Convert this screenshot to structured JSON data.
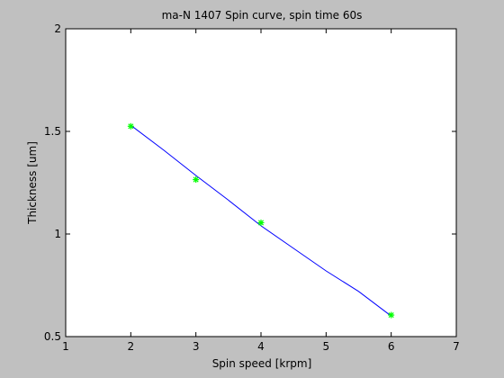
{
  "figure": {
    "background": "#c0c0c0",
    "axes_background": "#ffffff"
  },
  "chart_data": {
    "type": "scatter",
    "title": "ma-N 1407 Spin curve, spin time 60s",
    "xlabel": "Spin speed [krpm]",
    "ylabel": "Thickness [um]",
    "xlim": [
      1,
      7
    ],
    "ylim": [
      0.5,
      2
    ],
    "xticks": [
      1,
      2,
      3,
      4,
      5,
      6,
      7
    ],
    "yticks": [
      0.5,
      1,
      1.5,
      2
    ],
    "xtick_labels": [
      "1",
      "2",
      "3",
      "4",
      "5",
      "6",
      "7"
    ],
    "ytick_labels": [
      "0.5",
      "1",
      "1.5",
      "2"
    ],
    "grid": false,
    "legend": "none",
    "series": [
      {
        "style": "green asterisk markers",
        "color": "#00ff00",
        "x": [
          2,
          3,
          4,
          6
        ],
        "y": [
          1.525,
          1.265,
          1.055,
          0.605
        ]
      },
      {
        "style": "blue fitted line",
        "color": "#0000ff",
        "x": [
          2,
          2.5,
          3,
          3.5,
          4,
          4.5,
          5,
          5.5,
          6
        ],
        "y": [
          1.53,
          1.41,
          1.285,
          1.165,
          1.04,
          0.93,
          0.82,
          0.72,
          0.6
        ]
      }
    ]
  }
}
